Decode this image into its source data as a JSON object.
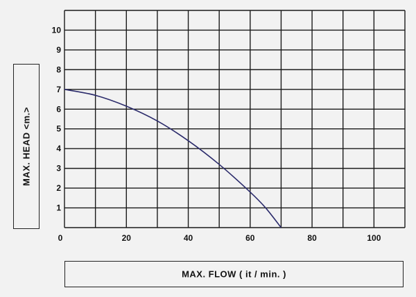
{
  "chart_data": {
    "type": "line",
    "title": "",
    "xlabel": "MAX.  FLOW  ( it / min. )",
    "ylabel": "MAX.  HEAD  <m.>",
    "xlim": [
      0,
      110
    ],
    "ylim": [
      0,
      11
    ],
    "grid": true,
    "x_ticks": [
      20,
      40,
      60,
      80,
      100
    ],
    "y_ticks": [
      0,
      1,
      2,
      3,
      4,
      5,
      6,
      7,
      8,
      9,
      10
    ],
    "series": [
      {
        "name": "",
        "color": "#2b2b6b",
        "x": [
          0,
          10,
          20,
          30,
          40,
          50,
          60,
          65,
          70
        ],
        "y": [
          7.0,
          6.7,
          6.15,
          5.4,
          4.4,
          3.2,
          1.8,
          1.0,
          0
        ]
      }
    ]
  }
}
